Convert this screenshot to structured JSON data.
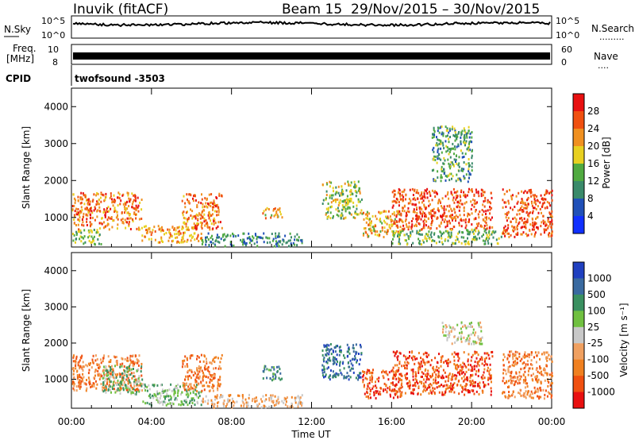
{
  "header": {
    "station": "Inuvik (fitACF)",
    "beam": "Beam 15",
    "date_range": "29/Nov/2015 – 30/Nov/2015"
  },
  "top_panels": {
    "nsky_label": "N.Sky",
    "nsky_ticks": [
      "10^5",
      "10^0"
    ],
    "nsearch_label": "N.Search",
    "nsearch_ticks": [
      "10^5",
      "10^0"
    ],
    "nsearch_legend": ".........",
    "freq_label_1": "Freq.",
    "freq_label_2": "[MHz]",
    "freq_ticks": [
      "10",
      "8"
    ],
    "nave_label": "Nave",
    "nave_ticks": [
      "60",
      "0"
    ],
    "nave_legend": "....",
    "cpid_label": "CPID",
    "cpid_value": "twofsound -3503"
  },
  "colors": {
    "background": "#ffffff",
    "trace": "#000000"
  },
  "chart_data": [
    {
      "type": "heatmap",
      "name": "power",
      "ylabel": "Slant Range [km]",
      "yticks": [
        "1000",
        "2000",
        "3000",
        "4000"
      ],
      "ylim": [
        200,
        4500
      ],
      "colorbar": {
        "label": "Power [dB]",
        "ticks": [
          "4",
          "8",
          "12",
          "16",
          "20",
          "24",
          "28"
        ],
        "range": [
          0,
          32
        ],
        "colors": [
          "#1030ff",
          "#2050b8",
          "#3a8a6a",
          "#50aa40",
          "#e8d020",
          "#f09020",
          "#f05010",
          "#e81010"
        ]
      },
      "scatter_regions": [
        {
          "t": [
            0.0,
            3.5
          ],
          "r": [
            700,
            1700
          ],
          "level": 24
        },
        {
          "t": [
            0.0,
            1.5
          ],
          "r": [
            300,
            700
          ],
          "level": 14
        },
        {
          "t": [
            3.5,
            6.5
          ],
          "r": [
            350,
            800
          ],
          "level": 22
        },
        {
          "t": [
            5.5,
            7.5
          ],
          "r": [
            700,
            1700
          ],
          "level": 24
        },
        {
          "t": [
            6.5,
            11.5
          ],
          "r": [
            250,
            600
          ],
          "level": 10
        },
        {
          "t": [
            9.5,
            10.5
          ],
          "r": [
            1000,
            1300
          ],
          "level": 20
        },
        {
          "t": [
            12.5,
            14.5
          ],
          "r": [
            1000,
            2000
          ],
          "level": 16
        },
        {
          "t": [
            14.5,
            16.5
          ],
          "r": [
            500,
            1200
          ],
          "level": 20
        },
        {
          "t": [
            16.0,
            21.0
          ],
          "r": [
            700,
            1800
          ],
          "level": 26
        },
        {
          "t": [
            16.0,
            21.5
          ],
          "r": [
            300,
            700
          ],
          "level": 14
        },
        {
          "t": [
            21.5,
            24.0
          ],
          "r": [
            500,
            1800
          ],
          "level": 26
        },
        {
          "t": [
            18.0,
            20.0
          ],
          "r": [
            2000,
            3500
          ],
          "level": 12
        }
      ]
    },
    {
      "type": "heatmap",
      "name": "velocity",
      "ylabel": "Slant Range [km]",
      "yticks": [
        "1000",
        "2000",
        "3000",
        "4000"
      ],
      "ylim": [
        200,
        4500
      ],
      "xlabel": "Time UT",
      "xticks": [
        "00:00",
        "04:00",
        "08:00",
        "12:00",
        "16:00",
        "20:00",
        "00:00"
      ],
      "xlim": [
        0,
        24
      ],
      "colorbar": {
        "label": "Velocity [m s⁻¹]",
        "ticks": [
          "1000",
          "500",
          "100",
          "25",
          "-25",
          "-100",
          "-500",
          "-1000"
        ],
        "colors": [
          "#2040c0",
          "#3a6aa0",
          "#3a9060",
          "#70c040",
          "#c8c8c8",
          "#f0a060",
          "#f08020",
          "#f05010",
          "#e81010"
        ]
      },
      "scatter_regions": [
        {
          "t": [
            0.0,
            3.5
          ],
          "r": [
            700,
            1700
          ],
          "vel_class": 6
        },
        {
          "t": [
            1.5,
            3.5
          ],
          "r": [
            600,
            1400
          ],
          "vel_class": 3
        },
        {
          "t": [
            3.5,
            6.5
          ],
          "r": [
            300,
            900
          ],
          "vel_class": 3
        },
        {
          "t": [
            5.5,
            7.5
          ],
          "r": [
            700,
            1700
          ],
          "vel_class": 6
        },
        {
          "t": [
            6.5,
            11.5
          ],
          "r": [
            250,
            600
          ],
          "vel_class": 5
        },
        {
          "t": [
            9.5,
            10.5
          ],
          "r": [
            1000,
            1400
          ],
          "vel_class": 2
        },
        {
          "t": [
            12.5,
            14.5
          ],
          "r": [
            1000,
            2000
          ],
          "vel_class": 1
        },
        {
          "t": [
            14.5,
            16.5
          ],
          "r": [
            500,
            1300
          ],
          "vel_class": 7
        },
        {
          "t": [
            16.0,
            21.0
          ],
          "r": [
            600,
            1800
          ],
          "vel_class": 7
        },
        {
          "t": [
            21.5,
            24.0
          ],
          "r": [
            500,
            1800
          ],
          "vel_class": 6
        },
        {
          "t": [
            18.5,
            20.5
          ],
          "r": [
            2000,
            2600
          ],
          "vel_class": 4
        }
      ]
    }
  ]
}
